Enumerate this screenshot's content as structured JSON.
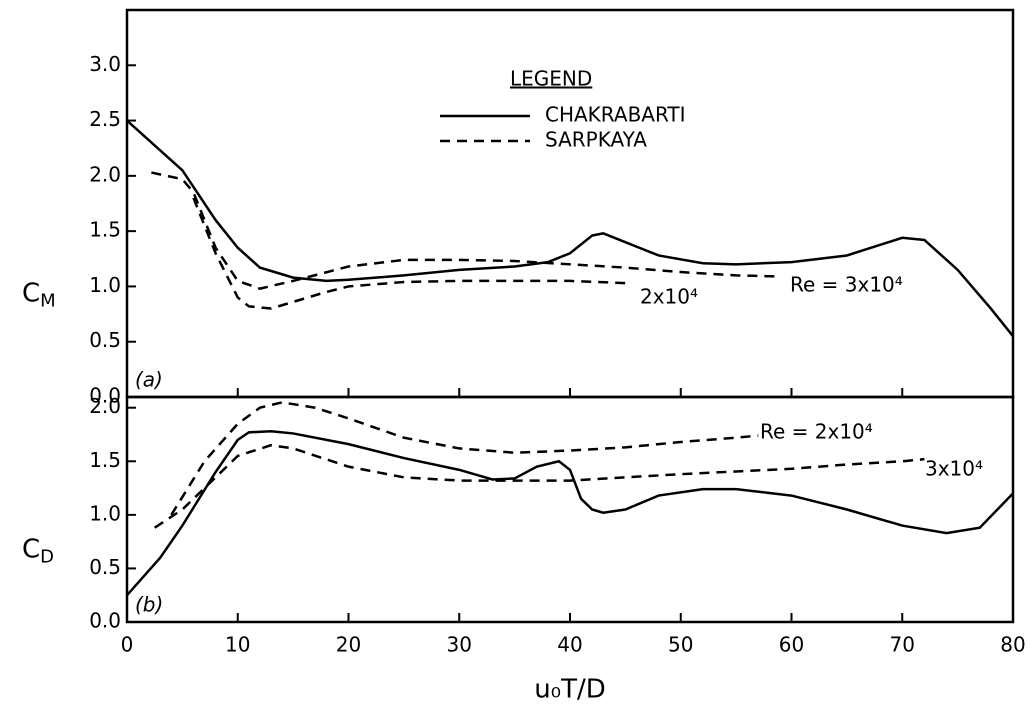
{
  "chart_data": [
    {
      "type": "line",
      "panel_label": "(a)",
      "ylabel": "C",
      "ylabel_sub": "M",
      "xlim": [
        0,
        80
      ],
      "xticks": [
        0,
        10,
        20,
        30,
        40,
        50,
        60,
        70,
        80
      ],
      "ylim": [
        0,
        3.5
      ],
      "yticks": [
        {
          "value": 0,
          "label": "0.0"
        },
        0.5,
        {
          "value": 1,
          "label": "1.0"
        },
        1.5,
        {
          "value": 2,
          "label": "2.0"
        },
        2.5,
        {
          "value": 3,
          "label": "3.0"
        }
      ],
      "legend": {
        "title": "LEGEND",
        "entries": [
          {
            "name": "CHAKRABARTI",
            "dash": "solid"
          },
          {
            "name": "SARPKAYA",
            "dash": "dashed"
          }
        ]
      },
      "series": [
        {
          "color": "#000000",
          "dash": "solid",
          "x": [
            0,
            5,
            8,
            10,
            12,
            15,
            18,
            20,
            25,
            30,
            35,
            38,
            40,
            42,
            43,
            45,
            48,
            52,
            55,
            60,
            65,
            70,
            72,
            75,
            78,
            80
          ],
          "values": [
            2.5,
            2.05,
            1.6,
            1.35,
            1.17,
            1.08,
            1.05,
            1.06,
            1.1,
            1.15,
            1.18,
            1.22,
            1.3,
            1.46,
            1.48,
            1.4,
            1.28,
            1.21,
            1.2,
            1.22,
            1.28,
            1.44,
            1.42,
            1.15,
            0.8,
            0.55
          ]
        },
        {
          "name": "Re = 3x10⁴",
          "color": "#000000",
          "dash": "dashed",
          "x": [
            2.2,
            5,
            6,
            8,
            10,
            12,
            15,
            20,
            25,
            30,
            35,
            40,
            45,
            50,
            55,
            59
          ],
          "values": [
            2.03,
            1.97,
            1.85,
            1.35,
            1.05,
            0.98,
            1.05,
            1.18,
            1.24,
            1.24,
            1.23,
            1.2,
            1.17,
            1.13,
            1.1,
            1.09
          ]
        },
        {
          "name": "2x10⁴",
          "color": "#000000",
          "dash": "dashed",
          "x": [
            6,
            8,
            10,
            11,
            13,
            15,
            18,
            20,
            25,
            30,
            40,
            45
          ],
          "values": [
            1.8,
            1.3,
            0.9,
            0.82,
            0.8,
            0.86,
            0.95,
            1.0,
            1.04,
            1.05,
            1.05,
            1.03
          ]
        }
      ]
    },
    {
      "type": "line",
      "panel_label": "(b)",
      "ylabel": "C",
      "ylabel_sub": "D",
      "xlabel": "u₀T/D",
      "xlim": [
        0,
        80
      ],
      "xticks": [
        0,
        10,
        20,
        30,
        40,
        50,
        60,
        70,
        80
      ],
      "ylim": [
        0,
        2.1
      ],
      "yticks": [
        {
          "value": 0,
          "label": "0.0"
        },
        0.5,
        {
          "value": 1,
          "label": "1.0"
        },
        1.5,
        {
          "value": 2,
          "label": "2.0"
        }
      ],
      "series": [
        {
          "color": "#000000",
          "dash": "solid",
          "x": [
            0,
            3,
            5,
            8,
            10,
            11,
            13,
            15,
            20,
            25,
            30,
            33,
            35,
            37,
            39,
            40,
            41,
            42,
            43,
            45,
            48,
            52,
            55,
            60,
            65,
            70,
            74,
            77,
            80
          ],
          "values": [
            0.25,
            0.6,
            0.9,
            1.4,
            1.7,
            1.77,
            1.78,
            1.76,
            1.66,
            1.53,
            1.42,
            1.33,
            1.34,
            1.45,
            1.5,
            1.42,
            1.15,
            1.05,
            1.02,
            1.05,
            1.18,
            1.24,
            1.24,
            1.18,
            1.05,
            0.9,
            0.83,
            0.88,
            1.2
          ]
        },
        {
          "name": "Re = 2x10⁴",
          "color": "#000000",
          "dash": "dashed",
          "x": [
            4,
            7,
            10,
            12,
            14,
            17,
            20,
            25,
            30,
            35,
            40,
            45,
            50,
            55,
            57
          ],
          "values": [
            1.0,
            1.5,
            1.85,
            2.0,
            2.05,
            2.0,
            1.9,
            1.72,
            1.62,
            1.58,
            1.6,
            1.63,
            1.68,
            1.72,
            1.74
          ]
        },
        {
          "name": "3x10⁴",
          "color": "#000000",
          "dash": "dashed",
          "x": [
            2.5,
            5,
            8,
            10,
            13,
            15,
            20,
            25,
            30,
            40,
            50,
            60,
            65,
            70,
            72
          ],
          "values": [
            0.88,
            1.05,
            1.35,
            1.55,
            1.65,
            1.62,
            1.45,
            1.35,
            1.32,
            1.32,
            1.38,
            1.43,
            1.47,
            1.5,
            1.52
          ]
        }
      ]
    }
  ]
}
